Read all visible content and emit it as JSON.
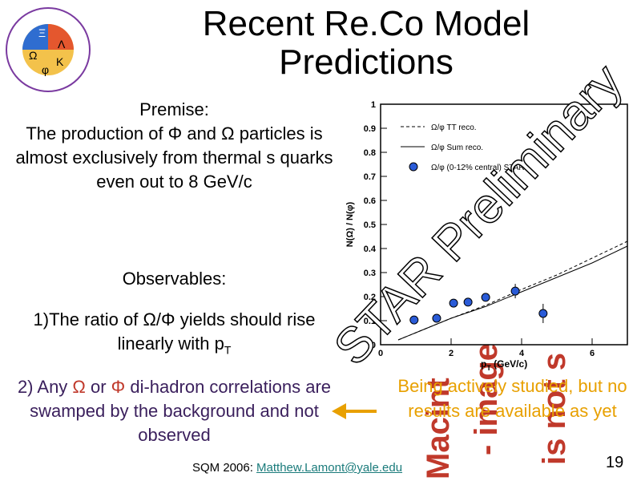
{
  "title": "Recent Re.Co Model Predictions",
  "logo": {
    "symbols": [
      "Ξ",
      "Λ",
      "Ω",
      "K",
      "φ"
    ]
  },
  "premise": {
    "heading": "Premise:",
    "text": "The production of Φ and Ω particles is almost exclusively from thermal s quarks even out to 8 GeV/c"
  },
  "observables": {
    "heading": "Observables:",
    "item1": {
      "text": "1)The ratio of Ω/Φ yields should rise linearly with p",
      "sub": "T"
    },
    "item2": [
      "2) Any ",
      "Ω",
      " or ",
      "Φ",
      " di-hadron correlations are swamped by the background and not observed"
    ]
  },
  "status_note": "Being actively studied, but no results are available as yet",
  "image_placeholder": [
    "Macint",
    "- image",
    "is not s"
  ],
  "footer": {
    "label": "SQM 2006: ",
    "email": "Matthew.Lamont@yale.edu",
    "page": "19"
  },
  "chart_data": {
    "type": "scatter",
    "watermark": "STAR Preliminary",
    "xlabel": "p",
    "xlabel_sub": "T",
    "xlabel_unit": " (GeV/c)",
    "ylabel": "N(Ω) / N(φ)",
    "xlim": [
      0,
      7
    ],
    "ylim": [
      0,
      1
    ],
    "xticks": [
      0,
      2,
      4,
      6
    ],
    "yticks": [
      0,
      0.1,
      0.2,
      0.3,
      0.4,
      0.5,
      0.6,
      0.7,
      0.8,
      0.9,
      1
    ],
    "series": [
      {
        "name": "Ω/φ TT reco.",
        "color": "#000000",
        "style": "dashed",
        "x": [
          0.5,
          1,
          2,
          3,
          4,
          5,
          6,
          7
        ],
        "values": [
          0.02,
          0.05,
          0.11,
          0.165,
          0.23,
          0.29,
          0.36,
          0.43
        ]
      },
      {
        "name": "Ω/φ Sum reco.",
        "color": "#000000",
        "style": "solid",
        "x": [
          0.5,
          1,
          2,
          3,
          4,
          5,
          6,
          7
        ],
        "values": [
          0.02,
          0.05,
          0.11,
          0.16,
          0.22,
          0.28,
          0.34,
          0.41
        ]
      },
      {
        "name": "Ω/φ (0-12% central) STAR",
        "color": "#2a5bd7",
        "style": "marker",
        "x": [
          0.95,
          1.59,
          2.07,
          2.48,
          2.98,
          3.82,
          4.61
        ],
        "values": [
          0.103,
          0.11,
          0.173,
          0.177,
          0.197,
          0.223,
          0.13
        ],
        "errors": [
          0.01,
          0.01,
          0.01,
          0.01,
          0.012,
          0.03,
          0.04
        ]
      }
    ]
  }
}
